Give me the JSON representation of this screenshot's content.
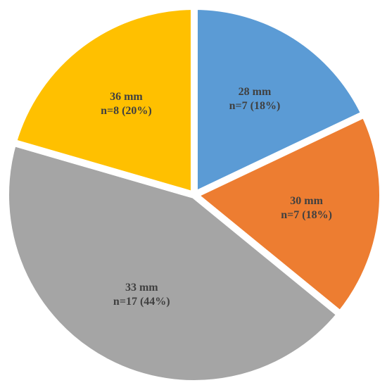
{
  "chart_data": {
    "type": "pie",
    "categories": [
      "28 mm",
      "30 mm",
      "33 mm",
      "36 mm"
    ],
    "values": [
      7,
      7,
      17,
      8
    ],
    "value_labels": [
      "n=7 (18%)",
      "n=7 (18%)",
      "n=17 (44%)",
      "n=8 (20%)"
    ],
    "colors": [
      "#5b9bd5",
      "#ed7d31",
      "#a5a5a5",
      "#ffc000"
    ]
  }
}
